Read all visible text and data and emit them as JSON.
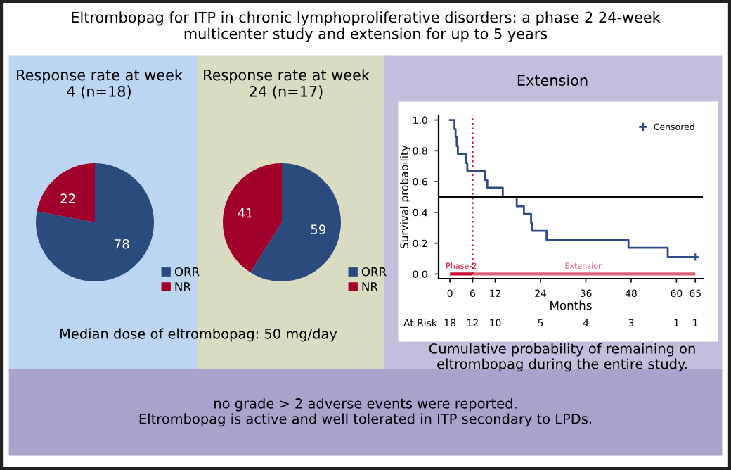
{
  "chart_data": [
    {
      "type": "other",
      "title": "Eltrombopag for ITP in chronic lymphoproliferative disorders: a phase 2 24-week\nmulticenter study and extension for up to 5 years",
      "annotations": [
        "no grade > 2 adverse events were reported.\nEltrombopag is active and well tolerated in ITP secondary to LPDs."
      ]
    },
    {
      "type": "pie",
      "title": "Response rate at week\n4 (n=18)",
      "categories": [
        "ORR",
        "NR"
      ],
      "values": [
        78,
        22
      ],
      "colors": [
        "#2b4a7e",
        "#a0002a"
      ],
      "data_labels": true,
      "legend": "bottom right",
      "annotations": [
        "Median dose of eltrombopag: 50 mg/day"
      ]
    },
    {
      "type": "pie",
      "title": "Response rate at week\n24 (n=17)",
      "categories": [
        "ORR",
        "NR"
      ],
      "values": [
        59,
        41
      ],
      "colors": [
        "#2b4a7e",
        "#a0002a"
      ],
      "data_labels": true,
      "legend": "bottom right"
    },
    {
      "type": "step",
      "title": "Extension",
      "xlabel": "Months",
      "ylabel": "Survival probability",
      "series": [
        {
          "x": [
            0,
            1.2,
            1.5,
            1.8,
            2.1,
            4.3,
            4.6,
            9.3,
            9.9,
            14,
            17.7,
            19.6,
            21.5,
            21.8,
            25.6,
            47.3,
            57.7,
            65
          ],
          "values": [
            1.0,
            0.94,
            0.89,
            0.83,
            0.78,
            0.72,
            0.67,
            0.61,
            0.56,
            0.5,
            0.44,
            0.39,
            0.33,
            0.28,
            0.22,
            0.17,
            0.11,
            0.11
          ],
          "color": "#2e4a87"
        },
        {
          "type": "line",
          "name": "Phase-2",
          "x": [
            0,
            6
          ],
          "values": [
            0,
            0
          ],
          "color": "#c8102e"
        },
        {
          "type": "line",
          "name": "Extension",
          "x": [
            6,
            65
          ],
          "values": [
            0,
            0
          ],
          "color": "#e0607a"
        },
        {
          "type": "scatter",
          "name": "Censored",
          "x": [
            65
          ],
          "values": [
            0.11
          ],
          "color": "#2e4a87",
          "marker": "cross"
        }
      ],
      "xlim": [
        -3,
        67
      ],
      "xticks": [
        0,
        6,
        12,
        24,
        36,
        48,
        60,
        65
      ],
      "ylim": [
        -0.03,
        1.03
      ],
      "yticks": [
        {
          "value": 0,
          "label": "0.0"
        },
        0.2,
        0.4,
        0.6,
        0.8,
        {
          "value": 1,
          "label": "1.0"
        }
      ],
      "ref_lines": [
        {
          "axis": "y",
          "value": 0.5,
          "color": "#000000",
          "line_style": "solid"
        },
        {
          "axis": "x",
          "value": 6,
          "color": "#c8102e",
          "line_style": "dotted"
        }
      ],
      "legend": "top right",
      "annotations": [
        "At Risk",
        "18",
        "12",
        "10",
        "5",
        "4",
        "3",
        "1",
        "1",
        "Cumulative probability of remaining on\neltrombopag during the entire study."
      ]
    }
  ]
}
